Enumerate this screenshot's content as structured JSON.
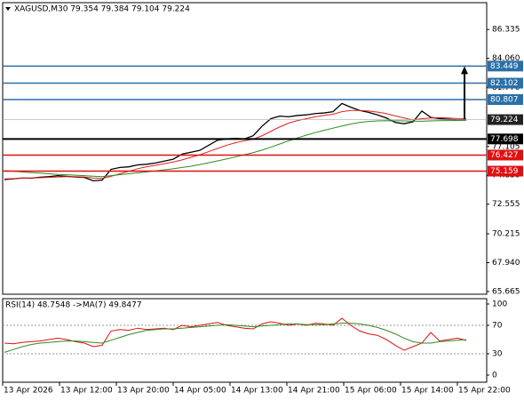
{
  "chart_data": [
    {
      "type": "line",
      "title": "XAGUSD,M30 79.354 79.384 79.104 79.224",
      "ylim": [
        65.45,
        88.45
      ],
      "yticks": [
        86.335,
        {
          "value": 84.06,
          "label": "84.060"
        },
        {
          "value": 81.77,
          "label": "81.770"
        },
        77.105,
        {
          "value": 74.83,
          "label": "74.830"
        },
        72.555,
        70.215,
        {
          "value": 67.94,
          "label": "67.940"
        },
        65.665
      ],
      "x_labels": [
        "13 Apr 2026",
        "13 Apr 12:00",
        "13 Apr 20:00",
        "14 Apr 05:00",
        "14 Apr 13:00",
        "14 Apr 21:00",
        "15 Apr 06:00",
        "15 Apr 14:00",
        "15 Apr 22:00"
      ],
      "series": [
        {
          "color": "#000000",
          "values": [
            74.5,
            74.55,
            74.62,
            74.6,
            74.68,
            74.72,
            74.8,
            74.75,
            74.7,
            74.66,
            74.4,
            74.45,
            75.3,
            75.45,
            75.5,
            75.65,
            75.7,
            75.8,
            75.95,
            76.1,
            76.5,
            76.65,
            76.8,
            77.2,
            77.6,
            77.7,
            77.75,
            77.7,
            77.95,
            78.7,
            79.3,
            79.5,
            79.45,
            79.55,
            79.6,
            79.7,
            79.75,
            79.85,
            80.5,
            80.2,
            79.95,
            79.8,
            79.6,
            79.35,
            79.0,
            78.9,
            79.05,
            79.9,
            79.4,
            79.3,
            79.25,
            79.2,
            79.224
          ]
        },
        {
          "color": "#e02020",
          "values": [
            74.55,
            74.57,
            74.6,
            74.62,
            74.64,
            74.67,
            74.7,
            74.72,
            74.72,
            74.7,
            74.62,
            74.58,
            74.75,
            74.95,
            75.15,
            75.35,
            75.5,
            75.62,
            75.75,
            75.88,
            76.05,
            76.25,
            76.45,
            76.7,
            76.95,
            77.2,
            77.4,
            77.55,
            77.68,
            77.95,
            78.3,
            78.65,
            78.95,
            79.15,
            79.3,
            79.45,
            79.55,
            79.65,
            79.85,
            79.95,
            79.95,
            79.9,
            79.82,
            79.7,
            79.52,
            79.35,
            79.2,
            79.3,
            79.35,
            79.38,
            79.35,
            79.3,
            79.28
          ]
        },
        {
          "color": "#2e8b20",
          "values": [
            75.2,
            75.15,
            75.1,
            75.05,
            75.0,
            74.95,
            74.9,
            74.87,
            74.84,
            74.8,
            74.76,
            74.72,
            74.8,
            74.88,
            74.95,
            75.02,
            75.1,
            75.18,
            75.26,
            75.35,
            75.45,
            75.55,
            75.68,
            75.82,
            75.97,
            76.12,
            76.28,
            76.45,
            76.62,
            76.82,
            77.05,
            77.3,
            77.55,
            77.78,
            78.0,
            78.2,
            78.38,
            78.55,
            78.72,
            78.88,
            79.0,
            79.08,
            79.12,
            79.14,
            79.13,
            79.12,
            79.1,
            79.1,
            79.12,
            79.14,
            79.15,
            79.16,
            79.17
          ]
        }
      ],
      "levels": [
        {
          "value": 83.449,
          "color": "#2a6fa8"
        },
        {
          "value": 82.102,
          "color": "#2a6fa8"
        },
        {
          "value": 80.807,
          "color": "#2a6fa8"
        },
        {
          "value": 77.698,
          "color": "#000000"
        },
        {
          "value": 76.427,
          "color": "#e01010"
        },
        {
          "value": 75.159,
          "color": "#e01010"
        }
      ],
      "last": 79.224
    },
    {
      "type": "line",
      "title": "RSI(14) 48.7548 ->MA(7) 49.8477",
      "ylim": [
        -10,
        107.5
      ],
      "yticks": [
        0,
        30,
        70,
        100
      ],
      "series": [
        {
          "color": "#e01010",
          "values": [
            45,
            44,
            46,
            47,
            48,
            50,
            52,
            50,
            47,
            45,
            40,
            42,
            62,
            64,
            63,
            66,
            64,
            65,
            66,
            64,
            70,
            68,
            70,
            72,
            74,
            70,
            68,
            66,
            65,
            72,
            75,
            73,
            70,
            72,
            70,
            73,
            72,
            70,
            80,
            70,
            62,
            58,
            56,
            50,
            42,
            35,
            40,
            45,
            60,
            48,
            50,
            52,
            48.75
          ]
        },
        {
          "color": "#2e8b20",
          "values": [
            32,
            36,
            40,
            43,
            45,
            46,
            47,
            48,
            48,
            47,
            46,
            45,
            49,
            53,
            57,
            60,
            63,
            64,
            65,
            65,
            66,
            67,
            68,
            69,
            70,
            71,
            70,
            69,
            68,
            69,
            70,
            71,
            72,
            72,
            71,
            71,
            71,
            72,
            73,
            73,
            72,
            70,
            67,
            63,
            58,
            52,
            47,
            45,
            45,
            47,
            48,
            49,
            49.85
          ]
        }
      ]
    }
  ]
}
